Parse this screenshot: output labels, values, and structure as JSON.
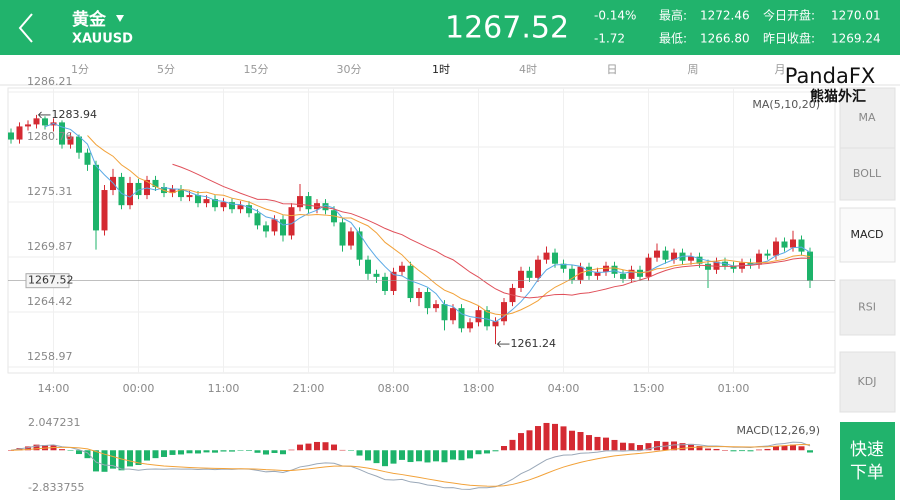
{
  "header": {
    "name": "黄金",
    "symbol": "XAUUSD",
    "price": "1267.52",
    "change_pct": "-0.14%",
    "change": "-1.72",
    "high_label": "最高:",
    "high": "1272.46",
    "low_label": "最低:",
    "low": "1266.80",
    "open_label": "今日开盘:",
    "open": "1270.01",
    "prev_close_label": "昨日收盘:",
    "prev_close": "1269.24"
  },
  "tabs": [
    "1分",
    "5分",
    "15分",
    "30分",
    "1时",
    "4时",
    "日",
    "周",
    "月"
  ],
  "indicators": [
    "MA",
    "BOLL",
    "MACD",
    "RSI",
    "KDJ"
  ],
  "order_button": [
    "快速",
    "下单"
  ],
  "logo": {
    "brand": "PandaFX",
    "cn": "熊猫外汇"
  },
  "chart_data": {
    "type": "candlestick",
    "up_color": "#d42a32",
    "down_color": "#1db36a",
    "ma_label": "MA(5,10,20)",
    "ma_periods": [
      5,
      10,
      20
    ],
    "ma_colors": [
      "#5aa9e6",
      "#f2a23a",
      "#e0505a"
    ],
    "ylim": [
      1258.97,
      1286.21
    ],
    "yticks": [
      1258.97,
      1264.42,
      1269.87,
      1275.31,
      1280.76,
      1286.21
    ],
    "xticks": [
      {
        "value": 5,
        "label": "14:00"
      },
      {
        "value": 15,
        "label": "00:00"
      },
      {
        "value": 25,
        "label": "11:00"
      },
      {
        "value": 35,
        "label": "21:00"
      },
      {
        "value": 45,
        "label": "08:00"
      },
      {
        "value": 55,
        "label": "18:00"
      },
      {
        "value": 65,
        "label": "04:00"
      },
      {
        "value": 75,
        "label": "15:00"
      },
      {
        "value": 85,
        "label": "01:00"
      }
    ],
    "high_mark": {
      "index": 3,
      "value": 1283.94
    },
    "low_mark": {
      "index": 57,
      "value": 1261.24
    },
    "last_price": 1267.52,
    "macd_label": "MACD(12,26,9)",
    "macd_periods": [
      12,
      26,
      9
    ],
    "macd_ylim": [
      -2.833755,
      2.047231
    ],
    "macd_colors": [
      "#9aa8b8",
      "#f2a23a"
    ],
    "candles": [
      [
        1282.2,
        1282.6,
        1281.1,
        1281.5
      ],
      [
        1281.5,
        1283.2,
        1281.1,
        1282.8
      ],
      [
        1282.8,
        1283.4,
        1282.4,
        1283.0
      ],
      [
        1283.0,
        1283.94,
        1282.6,
        1283.6
      ],
      [
        1283.6,
        1283.8,
        1282.5,
        1282.9
      ],
      [
        1282.9,
        1283.6,
        1282.3,
        1283.2
      ],
      [
        1283.2,
        1283.4,
        1280.6,
        1281.0
      ],
      [
        1281.0,
        1282.2,
        1280.6,
        1281.8
      ],
      [
        1281.8,
        1282.0,
        1279.6,
        1280.2
      ],
      [
        1280.2,
        1280.6,
        1278.4,
        1279.0
      ],
      [
        1279.0,
        1279.4,
        1270.6,
        1272.5
      ],
      [
        1272.5,
        1277.0,
        1272.0,
        1276.5
      ],
      [
        1276.5,
        1278.6,
        1276.0,
        1277.8
      ],
      [
        1277.8,
        1278.2,
        1274.6,
        1275.0
      ],
      [
        1275.0,
        1277.8,
        1274.6,
        1277.2
      ],
      [
        1277.2,
        1277.6,
        1275.6,
        1276.0
      ],
      [
        1276.0,
        1277.9,
        1275.6,
        1277.5
      ],
      [
        1277.5,
        1277.9,
        1276.4,
        1276.8
      ],
      [
        1276.8,
        1277.2,
        1275.8,
        1276.2
      ],
      [
        1276.2,
        1277.0,
        1275.8,
        1276.6
      ],
      [
        1276.6,
        1277.0,
        1275.4,
        1275.8
      ],
      [
        1275.8,
        1276.4,
        1275.4,
        1276.0
      ],
      [
        1276.0,
        1276.4,
        1274.8,
        1275.2
      ],
      [
        1275.2,
        1276.0,
        1274.8,
        1275.6
      ],
      [
        1275.6,
        1276.0,
        1274.4,
        1274.8
      ],
      [
        1274.8,
        1275.7,
        1274.4,
        1275.3
      ],
      [
        1275.3,
        1275.7,
        1274.2,
        1274.6
      ],
      [
        1274.6,
        1275.4,
        1274.2,
        1275.0
      ],
      [
        1275.0,
        1275.4,
        1273.8,
        1274.2
      ],
      [
        1274.2,
        1274.6,
        1272.6,
        1273.0
      ],
      [
        1273.0,
        1273.4,
        1271.8,
        1272.4
      ],
      [
        1272.4,
        1274.0,
        1272.0,
        1273.6
      ],
      [
        1273.6,
        1274.0,
        1271.4,
        1272.0
      ],
      [
        1272.0,
        1275.2,
        1271.6,
        1274.8
      ],
      [
        1274.8,
        1277.1,
        1274.4,
        1275.9
      ],
      [
        1275.9,
        1276.3,
        1274.2,
        1274.6
      ],
      [
        1274.6,
        1275.6,
        1274.2,
        1275.2
      ],
      [
        1275.2,
        1275.6,
        1274.1,
        1274.5
      ],
      [
        1274.5,
        1274.9,
        1272.9,
        1273.3
      ],
      [
        1273.3,
        1273.7,
        1270.4,
        1271.0
      ],
      [
        1271.0,
        1272.8,
        1270.6,
        1272.4
      ],
      [
        1272.4,
        1272.8,
        1269.0,
        1269.6
      ],
      [
        1269.6,
        1270.0,
        1267.6,
        1268.2
      ],
      [
        1268.2,
        1268.6,
        1267.3,
        1267.9
      ],
      [
        1267.9,
        1268.3,
        1266.1,
        1266.5
      ],
      [
        1266.5,
        1268.8,
        1266.1,
        1268.4
      ],
      [
        1268.4,
        1269.4,
        1268.0,
        1269.0
      ],
      [
        1269.0,
        1269.4,
        1265.4,
        1265.8
      ],
      [
        1265.8,
        1266.8,
        1265.0,
        1266.4
      ],
      [
        1266.4,
        1266.8,
        1264.2,
        1264.8
      ],
      [
        1264.8,
        1265.6,
        1264.4,
        1265.2
      ],
      [
        1265.2,
        1265.6,
        1262.6,
        1263.6
      ],
      [
        1263.6,
        1265.2,
        1263.2,
        1264.8
      ],
      [
        1264.8,
        1265.2,
        1262.4,
        1262.8
      ],
      [
        1262.8,
        1263.8,
        1262.4,
        1263.4
      ],
      [
        1263.4,
        1265.0,
        1263.0,
        1264.6
      ],
      [
        1264.6,
        1265.0,
        1262.6,
        1263.0
      ],
      [
        1263.0,
        1263.9,
        1261.24,
        1263.5
      ],
      [
        1263.5,
        1265.8,
        1263.1,
        1265.4
      ],
      [
        1265.4,
        1267.2,
        1265.0,
        1266.8
      ],
      [
        1266.8,
        1268.9,
        1266.4,
        1268.5
      ],
      [
        1268.5,
        1268.9,
        1267.4,
        1267.8
      ],
      [
        1267.8,
        1270.0,
        1267.4,
        1269.6
      ],
      [
        1269.6,
        1270.9,
        1269.2,
        1270.3
      ],
      [
        1270.3,
        1270.7,
        1268.8,
        1269.2
      ],
      [
        1269.2,
        1269.6,
        1268.3,
        1268.7
      ],
      [
        1268.7,
        1269.1,
        1267.2,
        1267.6
      ],
      [
        1267.6,
        1269.3,
        1267.2,
        1268.9
      ],
      [
        1268.9,
        1269.3,
        1267.6,
        1268.0
      ],
      [
        1268.0,
        1268.8,
        1267.6,
        1268.4
      ],
      [
        1268.4,
        1269.4,
        1268.0,
        1269.0
      ],
      [
        1269.0,
        1269.4,
        1267.8,
        1268.2
      ],
      [
        1268.2,
        1268.6,
        1267.3,
        1267.7
      ],
      [
        1267.7,
        1269.0,
        1267.3,
        1268.6
      ],
      [
        1268.6,
        1269.0,
        1267.5,
        1267.9
      ],
      [
        1267.9,
        1270.2,
        1267.5,
        1269.8
      ],
      [
        1269.8,
        1271.2,
        1269.4,
        1270.5
      ],
      [
        1270.5,
        1270.9,
        1269.2,
        1269.6
      ],
      [
        1269.6,
        1270.7,
        1269.2,
        1270.3
      ],
      [
        1270.3,
        1270.7,
        1269.1,
        1269.5
      ],
      [
        1269.5,
        1270.3,
        1269.1,
        1269.9
      ],
      [
        1269.9,
        1270.3,
        1268.8,
        1269.2
      ],
      [
        1269.2,
        1269.6,
        1266.8,
        1268.6
      ],
      [
        1268.6,
        1269.8,
        1268.2,
        1269.4
      ],
      [
        1269.4,
        1269.8,
        1268.6,
        1269.0
      ],
      [
        1269.0,
        1269.4,
        1268.3,
        1268.7
      ],
      [
        1268.7,
        1269.7,
        1268.3,
        1269.3
      ],
      [
        1269.3,
        1269.7,
        1268.7,
        1269.1
      ],
      [
        1269.1,
        1270.6,
        1268.7,
        1270.2
      ],
      [
        1270.2,
        1270.6,
        1269.6,
        1270.0
      ],
      [
        1270.0,
        1271.8,
        1269.6,
        1271.4
      ],
      [
        1271.4,
        1271.8,
        1270.4,
        1270.8
      ],
      [
        1270.8,
        1272.46,
        1270.4,
        1271.6
      ],
      [
        1271.6,
        1272.0,
        1270.0,
        1270.4
      ],
      [
        1270.4,
        1270.8,
        1266.8,
        1267.52
      ]
    ]
  }
}
